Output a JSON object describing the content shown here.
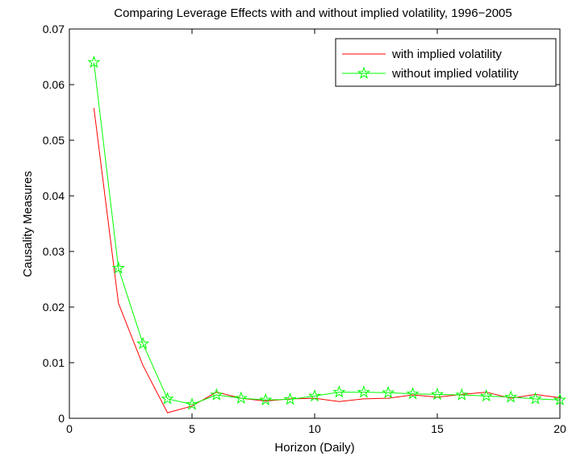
{
  "chart_data": {
    "type": "line",
    "title": "Comparing Leverage Effects with and without implied volatility, 1996−2005",
    "xlabel": "Horizon (Daily)",
    "ylabel": "Causality Measures",
    "xlim": [
      0,
      20
    ],
    "ylim": [
      0,
      0.07
    ],
    "xticks": [
      0,
      5,
      10,
      15,
      20
    ],
    "xtick_labels": [
      "0",
      "5",
      "10",
      "15",
      "20"
    ],
    "yticks": [
      0,
      0.01,
      0.02,
      0.03,
      0.04,
      0.05,
      0.06,
      0.07
    ],
    "ytick_labels": [
      "0",
      "0.01",
      "0.02",
      "0.03",
      "0.04",
      "0.05",
      "0.06",
      "0.07"
    ],
    "grid": false,
    "legend_position": "top-right",
    "x": [
      1,
      2,
      3,
      4,
      5,
      6,
      7,
      8,
      9,
      10,
      11,
      12,
      13,
      14,
      15,
      16,
      17,
      18,
      19,
      20
    ],
    "series": [
      {
        "name": "with implied volatility",
        "color": "#ff0000",
        "marker": "none",
        "values": [
          0.0558,
          0.0207,
          0.0095,
          0.001,
          0.0022,
          0.0047,
          0.0036,
          0.0031,
          0.0035,
          0.0036,
          0.003,
          0.0035,
          0.0036,
          0.0042,
          0.0038,
          0.0043,
          0.0047,
          0.0036,
          0.0043,
          0.0037
        ]
      },
      {
        "name": "without implied volatility",
        "color": "#00ff00",
        "marker": "star",
        "values": [
          0.064,
          0.027,
          0.0134,
          0.0035,
          0.0025,
          0.0042,
          0.0036,
          0.0033,
          0.0034,
          0.004,
          0.0047,
          0.0047,
          0.0046,
          0.0044,
          0.0043,
          0.0042,
          0.004,
          0.0038,
          0.0035,
          0.0033
        ]
      }
    ]
  }
}
